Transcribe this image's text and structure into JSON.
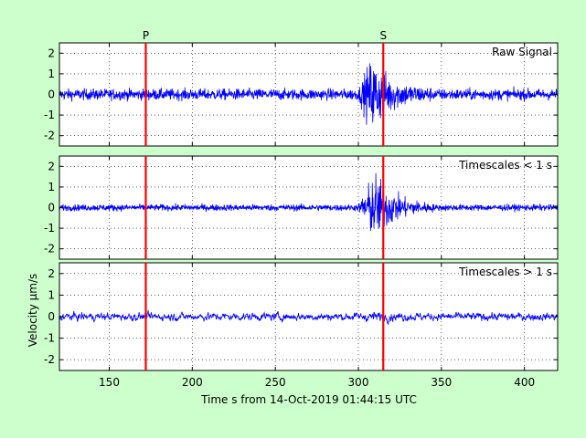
{
  "figure": {
    "background": "#ccffcc",
    "axes_background": "#ffffff",
    "trace_color": "#0000ff",
    "marker_color": "#ff0000"
  },
  "chart_data": {
    "type": "line",
    "xlabel": "Time s from 14-Oct-2019 01:44:15 UTC",
    "ylabel": "Velocity μm/s",
    "xlim": [
      120,
      420
    ],
    "xticks": [
      150,
      200,
      250,
      300,
      350,
      400
    ],
    "grid": true,
    "phase_markers": [
      {
        "label": "P",
        "x": 172
      },
      {
        "label": "S",
        "x": 315
      }
    ],
    "panels": [
      {
        "label": "Raw Signal",
        "ylim": [
          -2.5,
          2.5
        ],
        "yticks": [
          -2,
          -1,
          0,
          1,
          2
        ],
        "approx_envelope": {
          "noise_amplitude": 0.35,
          "event_start": 300,
          "event_peak": 308,
          "peak_amplitude": 2.3,
          "event_end": 345
        }
      },
      {
        "label": "Timescales < 1 s",
        "ylim": [
          -2.5,
          2.5
        ],
        "yticks": [
          -2,
          -1,
          0,
          1,
          2
        ],
        "approx_envelope": {
          "noise_amplitude": 0.2,
          "event_start": 300,
          "event_peak": 310,
          "peak_amplitude": 2.2,
          "event_end": 345
        }
      },
      {
        "label": "Timescales > 1 s",
        "ylim": [
          -2.5,
          2.5
        ],
        "yticks": [
          -2,
          -1,
          0,
          1,
          2
        ],
        "approx_envelope": {
          "noise_amplitude": 0.25,
          "event_start": 300,
          "event_peak": 312,
          "peak_amplitude": 0.35,
          "event_end": 340
        }
      }
    ]
  }
}
